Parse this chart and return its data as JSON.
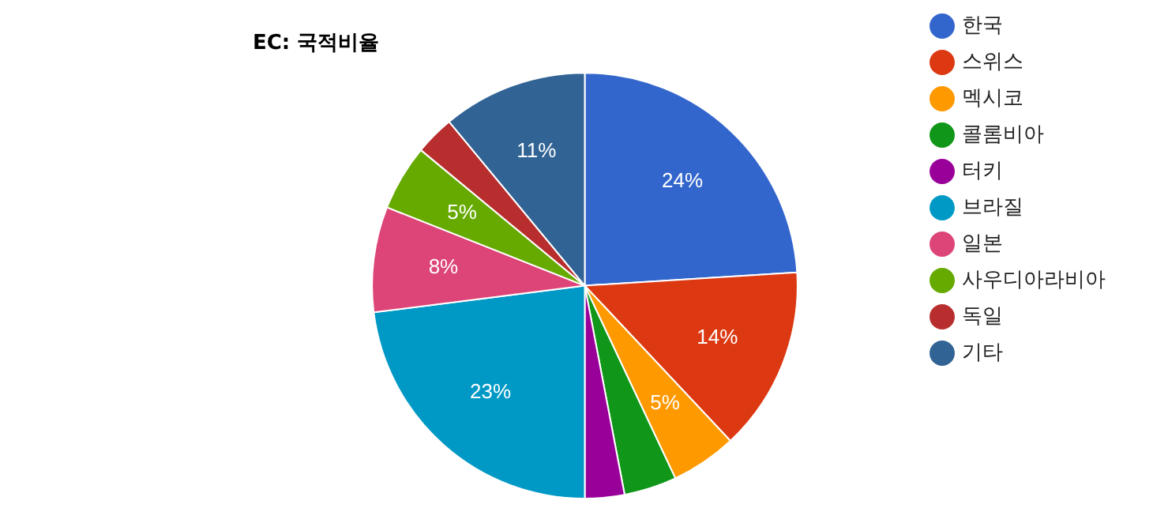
{
  "chart_data": {
    "type": "pie",
    "title": "EC: 국적비율",
    "categories": [
      "한국",
      "스위스",
      "멕시코",
      "콜롬비아",
      "터키",
      "브라질",
      "일본",
      "사우디아라비아",
      "독일",
      "기타"
    ],
    "values": [
      24,
      14,
      5,
      4,
      3,
      23,
      8,
      5,
      3,
      11
    ],
    "colors": [
      "#3366cc",
      "#dc3912",
      "#ff9900",
      "#109618",
      "#990099",
      "#0099c6",
      "#dd4477",
      "#66aa00",
      "#b82e2e",
      "#316395"
    ],
    "value_labels": [
      "24%",
      "14%",
      "5%",
      null,
      null,
      "23%",
      "8%",
      "5%",
      null,
      "11%"
    ],
    "legend": "right"
  }
}
